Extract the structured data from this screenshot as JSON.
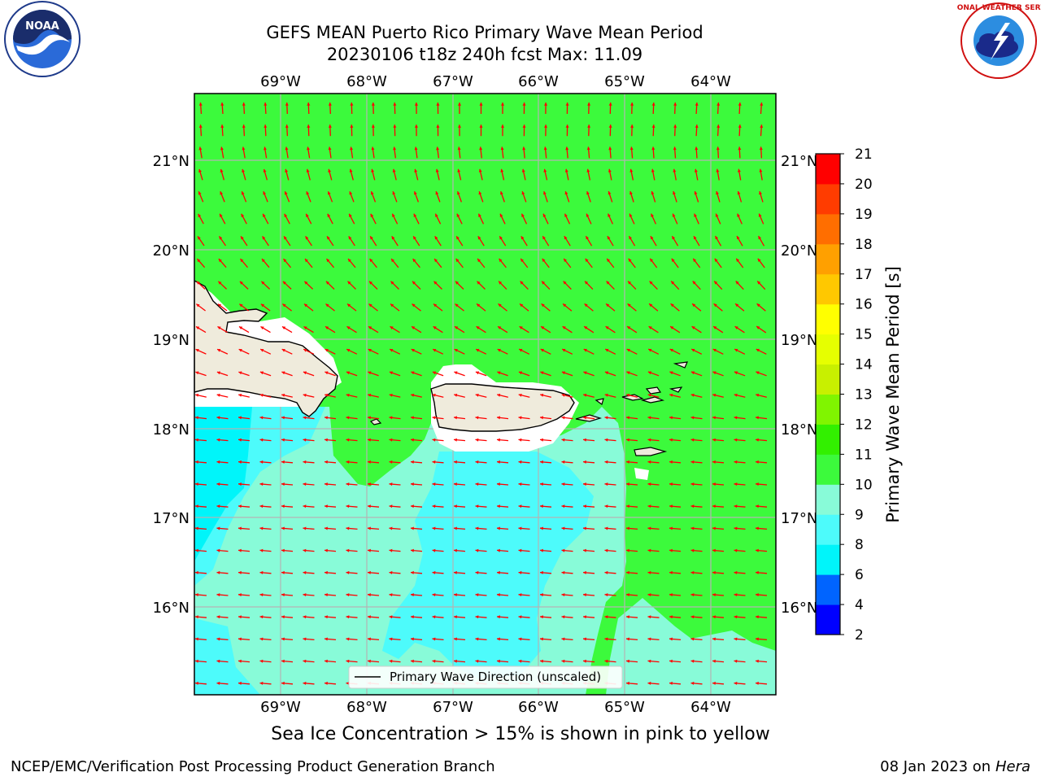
{
  "header": {
    "title_line1": "GEFS MEAN Puerto Rico Primary Wave Mean Period",
    "title_line2": "20230106 t18z 240h fcst   Max: 11.09"
  },
  "logos": {
    "left": {
      "icon": "noaa-logo",
      "text": "NOAA",
      "ring_text": "NATIONAL OCEANIC AND ATMOSPHERIC ADMINISTRATION · U.S. DEPARTMENT OF COMMERCE"
    },
    "right": {
      "icon": "nws-logo",
      "ring_text": "NATIONAL WEATHER SERVICE"
    }
  },
  "map": {
    "lon_labels": [
      "69°W",
      "68°W",
      "67°W",
      "66°W",
      "65°W",
      "64°W"
    ],
    "lat_labels": [
      "21°N",
      "20°N",
      "19°N",
      "18°N",
      "17°N",
      "16°N"
    ],
    "legend_label": "Primary Wave Direction (unscaled)",
    "colors": {
      "land": "#efebdc",
      "green_10_11": "#3cfa3c",
      "aqua_9_10": "#88fbd8",
      "cyan_8_9": "#4dfbfb",
      "cyan_6_8": "#00f5fa",
      "arrow": "#ff0000",
      "grid": "#b4b4b4"
    }
  },
  "colorbar": {
    "label": "Primary Wave Mean Period [s]",
    "ticks": [
      "2",
      "4",
      "6",
      "8",
      "9",
      "10",
      "11",
      "12",
      "13",
      "14",
      "15",
      "16",
      "17",
      "18",
      "19",
      "20",
      "21"
    ],
    "colors": [
      "#0000ff",
      "#0064ff",
      "#00f5fa",
      "#4dfbfb",
      "#88fbd8",
      "#3cfa3c",
      "#32f000",
      "#80f500",
      "#c8f000",
      "#e6ff00",
      "#ffff00",
      "#ffc800",
      "#ffa000",
      "#ff6e00",
      "#ff3c00",
      "#ff0000"
    ]
  },
  "note": "Sea Ice Concentration > 15% is shown in pink to yellow",
  "footer": {
    "left": "NCEP/EMC/Verification Post Processing Product Generation Branch",
    "right_date": "08 Jan 2023 on",
    "right_host": "Hera"
  }
}
